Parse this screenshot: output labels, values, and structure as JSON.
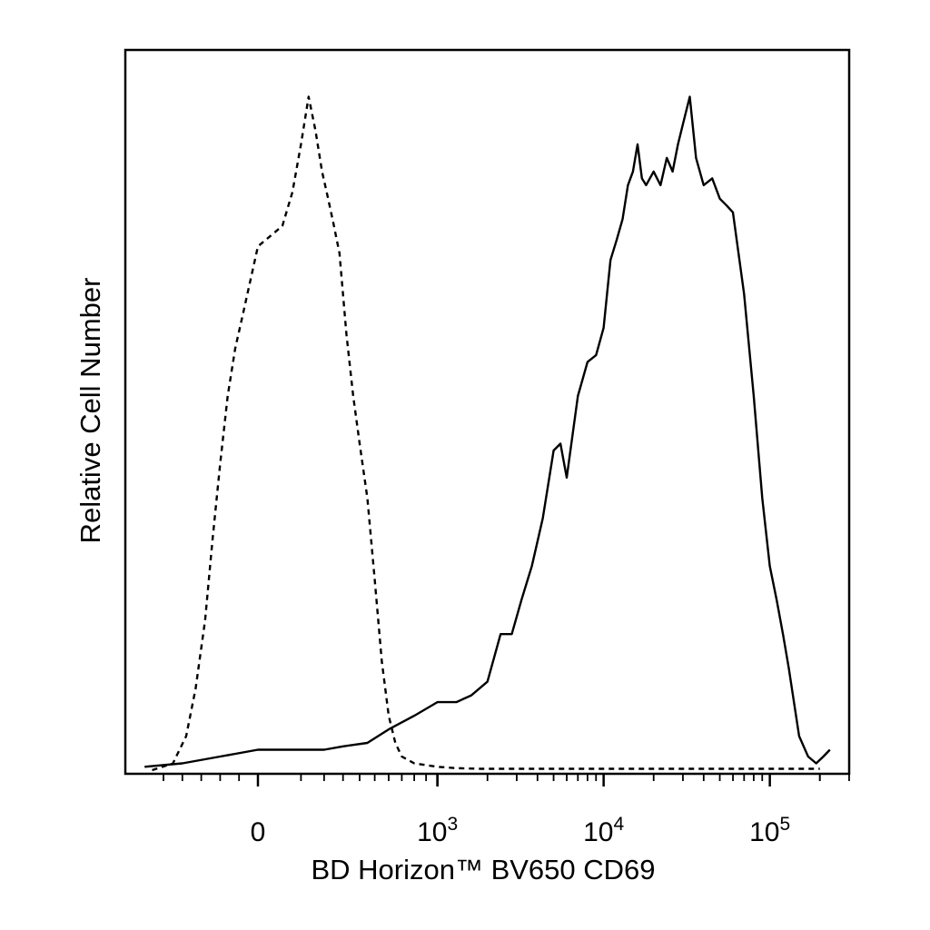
{
  "chart_data": {
    "type": "line",
    "xlabel": "BD Horizon™ BV650 CD69",
    "ylabel": "Relative Cell Number",
    "x_scale": "biexponential",
    "xlim": [
      -600,
      250000
    ],
    "ylim": [
      0,
      100
    ],
    "grid": false,
    "x_ticks": [
      {
        "value": 0,
        "base": "0",
        "exp": ""
      },
      {
        "value": 1000,
        "base": "10",
        "exp": "3"
      },
      {
        "value": 10000,
        "base": "10",
        "exp": "4"
      },
      {
        "value": 100000,
        "base": "10",
        "exp": "5"
      }
    ],
    "series": [
      {
        "style": "dashed",
        "x": [
          -560,
          -450,
          -380,
          -330,
          -280,
          -240,
          -200,
          -160,
          -120,
          -80,
          -40,
          0,
          40,
          70,
          100,
          130,
          160,
          190,
          220,
          250,
          280,
          320,
          360,
          400,
          450,
          500,
          550,
          600,
          650,
          700,
          800,
          1000,
          1300,
          1800,
          3000,
          10000,
          100000,
          200000
        ],
        "y": [
          0,
          1,
          5,
          12,
          22,
          34,
          45,
          55,
          62,
          67,
          72,
          77,
          80,
          85,
          92,
          99,
          94,
          88,
          84,
          80,
          76,
          64,
          55,
          48,
          40,
          28,
          16,
          8,
          4,
          2,
          1,
          0.5,
          0.3,
          0.2,
          0.2,
          0.2,
          0.2,
          0.2
        ]
      },
      {
        "style": "solid",
        "x": [
          -600,
          -400,
          -200,
          0,
          100,
          200,
          300,
          450,
          600,
          800,
          1000,
          1300,
          1600,
          2000,
          2400,
          2800,
          3200,
          3700,
          4300,
          5000,
          5500,
          6000,
          7000,
          8000,
          9000,
          10000,
          11000,
          12000,
          13000,
          14000,
          15000,
          16000,
          17000,
          18000,
          20000,
          22000,
          24000,
          26000,
          28000,
          30000,
          33000,
          36000,
          40000,
          45000,
          50000,
          55000,
          60000,
          70000,
          80000,
          90000,
          100000,
          110000,
          120000,
          130000,
          150000,
          170000,
          190000,
          210000,
          230000
        ],
        "y": [
          0.5,
          1,
          2,
          3,
          3,
          3,
          3.5,
          4,
          6,
          8,
          10,
          10,
          11,
          13,
          20,
          20,
          25,
          30,
          37,
          47,
          48,
          43,
          55,
          60,
          61,
          65,
          75,
          78,
          81,
          86,
          88,
          92,
          87,
          86,
          88,
          86,
          90,
          88,
          92,
          95,
          99,
          90,
          86,
          87,
          84,
          83,
          82,
          70,
          55,
          40,
          30,
          25,
          20,
          15,
          5,
          2,
          1,
          2,
          3
        ]
      }
    ]
  }
}
